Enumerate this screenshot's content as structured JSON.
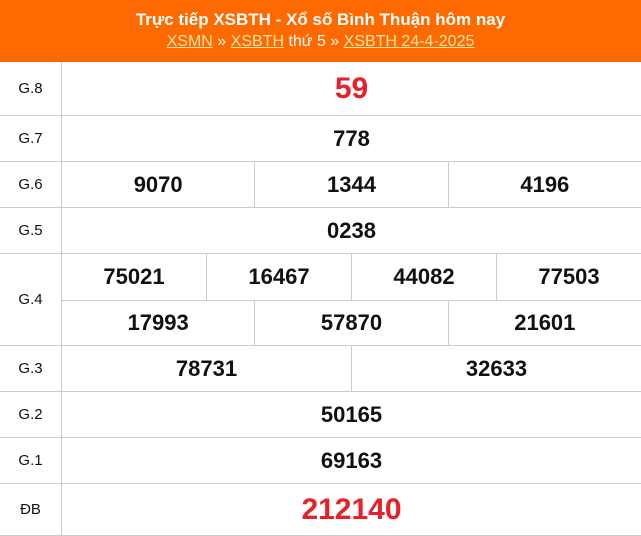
{
  "header": {
    "title": "Trực tiếp XSBTH - Xổ số Bình Thuận hôm nay",
    "link1": "XSMN",
    "sep1": " » ",
    "link2": "XSBTH",
    "mid": " thứ 5 » ",
    "link3": "XSBTH 24-4-2025"
  },
  "colors": {
    "header_bg": "#ff6a00",
    "special": "#e8202a"
  },
  "prizes": [
    {
      "label": "G.8",
      "lines": [
        [
          "59"
        ]
      ],
      "red": true
    },
    {
      "label": "G.7",
      "lines": [
        [
          "778"
        ]
      ]
    },
    {
      "label": "G.6",
      "lines": [
        [
          "9070",
          "1344",
          "4196"
        ]
      ]
    },
    {
      "label": "G.5",
      "lines": [
        [
          "0238"
        ]
      ]
    },
    {
      "label": "G.4",
      "lines": [
        [
          "75021",
          "16467",
          "44082",
          "77503"
        ],
        [
          "17993",
          "57870",
          "21601"
        ]
      ]
    },
    {
      "label": "G.3",
      "lines": [
        [
          "78731",
          "32633"
        ]
      ]
    },
    {
      "label": "G.2",
      "lines": [
        [
          "50165"
        ]
      ]
    },
    {
      "label": "G.1",
      "lines": [
        [
          "69163"
        ]
      ]
    },
    {
      "label": "ĐB",
      "lines": [
        [
          "212140"
        ]
      ],
      "red": true
    }
  ]
}
